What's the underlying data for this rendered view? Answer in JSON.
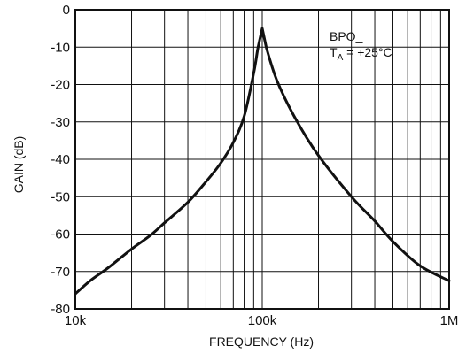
{
  "chart_data": {
    "type": "line",
    "xlabel": "FREQUENCY (Hz)",
    "ylabel": "GAIN (dB)",
    "x_scale": "log",
    "xlim": [
      10000,
      1000000
    ],
    "ylim": [
      -80,
      0
    ],
    "x_ticks": [
      {
        "value": 10000,
        "label": "10k"
      },
      {
        "value": 100000,
        "label": "100k"
      },
      {
        "value": 1000000,
        "label": "1M"
      }
    ],
    "y_ticks": [
      0,
      -10,
      -20,
      -30,
      -40,
      -50,
      -60,
      -70,
      -80
    ],
    "grid": true,
    "annotation": {
      "line1": "BPO_",
      "line2_main": "T",
      "line2_sub": "A",
      "line2_rest": " = +25°C"
    },
    "series": [
      {
        "x": [
          10000,
          12000,
          15000,
          20000,
          25000,
          30000,
          40000,
          50000,
          60000,
          70000,
          80000,
          90000,
          95000,
          100000,
          105000,
          120000,
          150000,
          200000,
          300000,
          400000,
          500000,
          700000,
          1000000
        ],
        "y": [
          -76,
          -72.5,
          -69,
          -64,
          -60.5,
          -57,
          -51.5,
          -46,
          -41,
          -35.5,
          -28.5,
          -17,
          -10,
          -5,
          -10,
          -19,
          -29,
          -39,
          -50,
          -56.5,
          -62,
          -68.5,
          -72.5
        ]
      }
    ]
  }
}
